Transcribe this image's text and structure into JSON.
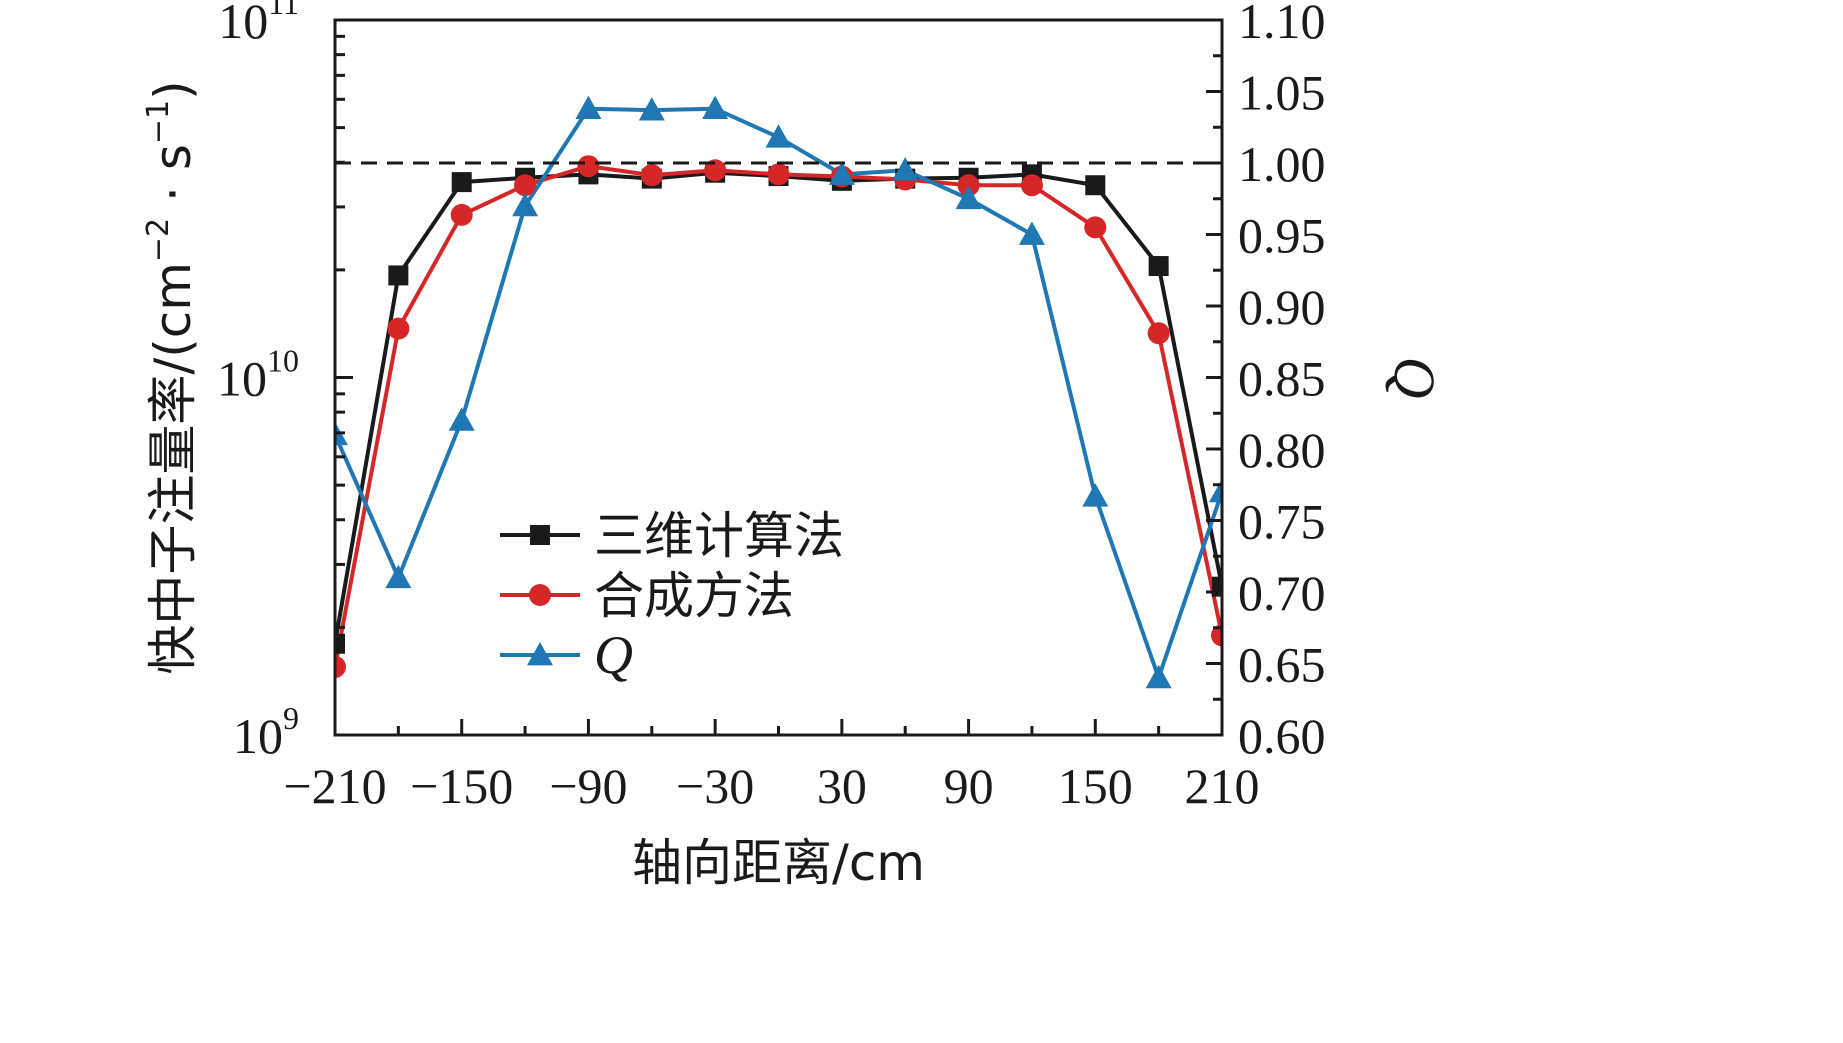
{
  "chart_data": {
    "type": "line",
    "xlabel": "轴向距离/cm",
    "ylabel_left": "快中子注量率/(cm",
    "ylabel_left_sup1": "−2",
    "ylabel_left_mid": " · s",
    "ylabel_left_sup2": "−1",
    "ylabel_left_end": ")",
    "ylabel_right": "Q",
    "xlim": [
      -210,
      210
    ],
    "x_ticks": [
      -210,
      -150,
      -90,
      -30,
      30,
      90,
      150,
      210
    ],
    "x_tick_labels": [
      "−210",
      "−150",
      "−90",
      "−30",
      "30",
      "90",
      "150",
      "210"
    ],
    "y_left_scale": "log",
    "y_left_lim": [
      1000000000.0,
      100000000000.0
    ],
    "y_left_ticks": [
      {
        "base": "10",
        "exp": "9"
      },
      {
        "base": "10",
        "exp": "10"
      },
      {
        "base": "10",
        "exp": "11"
      }
    ],
    "y_right_lim": [
      0.6,
      1.1
    ],
    "y_right_ticks": [
      "0.60",
      "0.65",
      "0.70",
      "0.75",
      "0.80",
      "0.85",
      "0.90",
      "0.95",
      "1.00",
      "1.05",
      "1.10"
    ],
    "reference_line": {
      "axis": "right",
      "value": 1.0,
      "style": "dashed"
    },
    "x": [
      -210,
      -180,
      -150,
      -120,
      -90,
      -60,
      -30,
      0,
      30,
      60,
      90,
      120,
      150,
      180,
      210
    ],
    "series": [
      {
        "name": "三维计算法",
        "axis": "left",
        "color": "#1a1a1a",
        "marker": "square",
        "values": [
          1800000000.0,
          19300000000.0,
          35200000000.0,
          36200000000.0,
          37000000000.0,
          36000000000.0,
          37400000000.0,
          36600000000.0,
          35500000000.0,
          36000000000.0,
          36200000000.0,
          37000000000.0,
          34500000000.0,
          20500000000.0,
          2600000000.0
        ]
      },
      {
        "name": "合成方法",
        "axis": "left",
        "color": "#d62728",
        "marker": "circle",
        "values": [
          1550000000.0,
          13700000000.0,
          28500000000.0,
          34500000000.0,
          39000000000.0,
          36800000000.0,
          38000000000.0,
          37000000000.0,
          36500000000.0,
          35800000000.0,
          34500000000.0,
          34500000000.0,
          26300000000.0,
          13300000000.0,
          1900000000.0
        ]
      },
      {
        "name": "Q",
        "axis": "right",
        "color": "#1f77b4",
        "marker": "triangle",
        "values": [
          0.81,
          0.71,
          0.82,
          0.97,
          1.038,
          1.037,
          1.038,
          1.018,
          0.992,
          0.995,
          0.975,
          0.95,
          0.767,
          0.64,
          0.77
        ]
      }
    ],
    "legend_position": "lower-left-inside"
  }
}
